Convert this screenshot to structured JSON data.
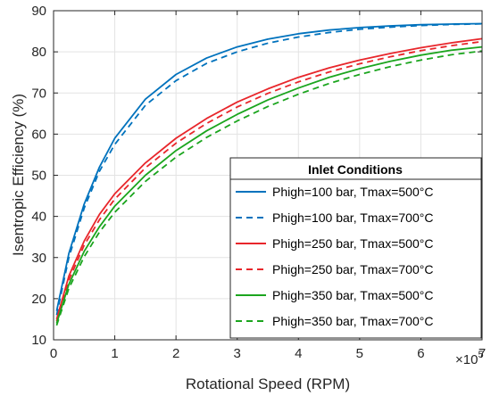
{
  "chart_data": {
    "type": "line",
    "xlabel": "Rotational Speed (RPM)",
    "ylabel": "Isentropic Efficiency (%)",
    "x_multiplier_label": "×10",
    "x_multiplier_exp": "5",
    "xlim": [
      0,
      7
    ],
    "ylim": [
      10,
      90
    ],
    "x_ticks": [
      "0",
      "1",
      "2",
      "3",
      "4",
      "5",
      "6",
      "7"
    ],
    "y_ticks": [
      "10",
      "20",
      "30",
      "40",
      "50",
      "60",
      "70",
      "80",
      "90"
    ],
    "grid": true,
    "legend": {
      "title": "Inlet Conditions",
      "placement": "bottom-right"
    },
    "series": [
      {
        "name": "Phigh=100 bar, Tmax=500°C",
        "color": "#0072BD",
        "dash": "solid",
        "x": [
          0.05,
          0.25,
          0.5,
          0.75,
          1.0,
          1.5,
          2.0,
          2.5,
          3.0,
          3.5,
          4.0,
          4.5,
          5.0,
          5.5,
          6.0,
          6.5,
          7.0
        ],
        "y": [
          17,
          31,
          43,
          52,
          59,
          68.5,
          74.5,
          78.5,
          81.2,
          83.1,
          84.4,
          85.3,
          85.9,
          86.3,
          86.6,
          86.75,
          86.85
        ]
      },
      {
        "name": "Phigh=100 bar, Tmax=700°C",
        "color": "#0072BD",
        "dash": "dashed",
        "x": [
          0.05,
          0.25,
          0.5,
          0.75,
          1.0,
          1.5,
          2.0,
          2.5,
          3.0,
          3.5,
          4.0,
          4.5,
          5.0,
          5.5,
          6.0,
          6.5,
          7.0
        ],
        "y": [
          16,
          30,
          42,
          51,
          57.5,
          67,
          73,
          77.2,
          80,
          82.1,
          83.6,
          84.7,
          85.5,
          86,
          86.4,
          86.65,
          86.8
        ]
      },
      {
        "name": "Phigh=250 bar, Tmax=500°C",
        "color": "#E8262B",
        "dash": "solid",
        "x": [
          0.05,
          0.25,
          0.5,
          0.75,
          1.0,
          1.5,
          2.0,
          2.5,
          3.0,
          3.5,
          4.0,
          4.5,
          5.0,
          5.5,
          6.0,
          6.5,
          7.0
        ],
        "y": [
          15,
          25.5,
          34,
          40.5,
          45.5,
          53,
          59,
          63.8,
          67.8,
          71,
          73.8,
          76.1,
          78,
          79.6,
          81,
          82.2,
          83.2
        ]
      },
      {
        "name": "Phigh=250 bar, Tmax=700°C",
        "color": "#E8262B",
        "dash": "dashed",
        "x": [
          0.05,
          0.25,
          0.5,
          0.75,
          1.0,
          1.5,
          2.0,
          2.5,
          3.0,
          3.5,
          4.0,
          4.5,
          5.0,
          5.5,
          6.0,
          6.5,
          7.0
        ],
        "y": [
          14.5,
          24.5,
          33,
          39.2,
          44.2,
          51.8,
          57.8,
          62.6,
          66.6,
          69.9,
          72.7,
          75.1,
          77.1,
          78.8,
          80.3,
          81.5,
          82.5
        ]
      },
      {
        "name": "Phigh=350 bar, Tmax=500°C",
        "color": "#1BA51E",
        "dash": "solid",
        "x": [
          0.05,
          0.25,
          0.5,
          0.75,
          1.0,
          1.5,
          2.0,
          2.5,
          3.0,
          3.5,
          4.0,
          4.5,
          5.0,
          5.5,
          6.0,
          6.5,
          7.0
        ],
        "y": [
          14,
          23.5,
          31.5,
          37.5,
          42.5,
          50,
          56,
          60.8,
          64.8,
          68.3,
          71.2,
          73.8,
          75.9,
          77.7,
          79.2,
          80.4,
          81.2
        ]
      },
      {
        "name": "Phigh=350 bar, Tmax=700°C",
        "color": "#1BA51E",
        "dash": "dashed",
        "x": [
          0.05,
          0.25,
          0.5,
          0.75,
          1.0,
          1.5,
          2.0,
          2.5,
          3.0,
          3.5,
          4.0,
          4.5,
          5.0,
          5.5,
          6.0,
          6.5,
          7.0
        ],
        "y": [
          13.5,
          22.5,
          30.2,
          36.2,
          41,
          48.5,
          54.4,
          59.2,
          63.2,
          66.7,
          69.7,
          72.3,
          74.5,
          76.4,
          78,
          79.3,
          80.2
        ]
      }
    ]
  }
}
